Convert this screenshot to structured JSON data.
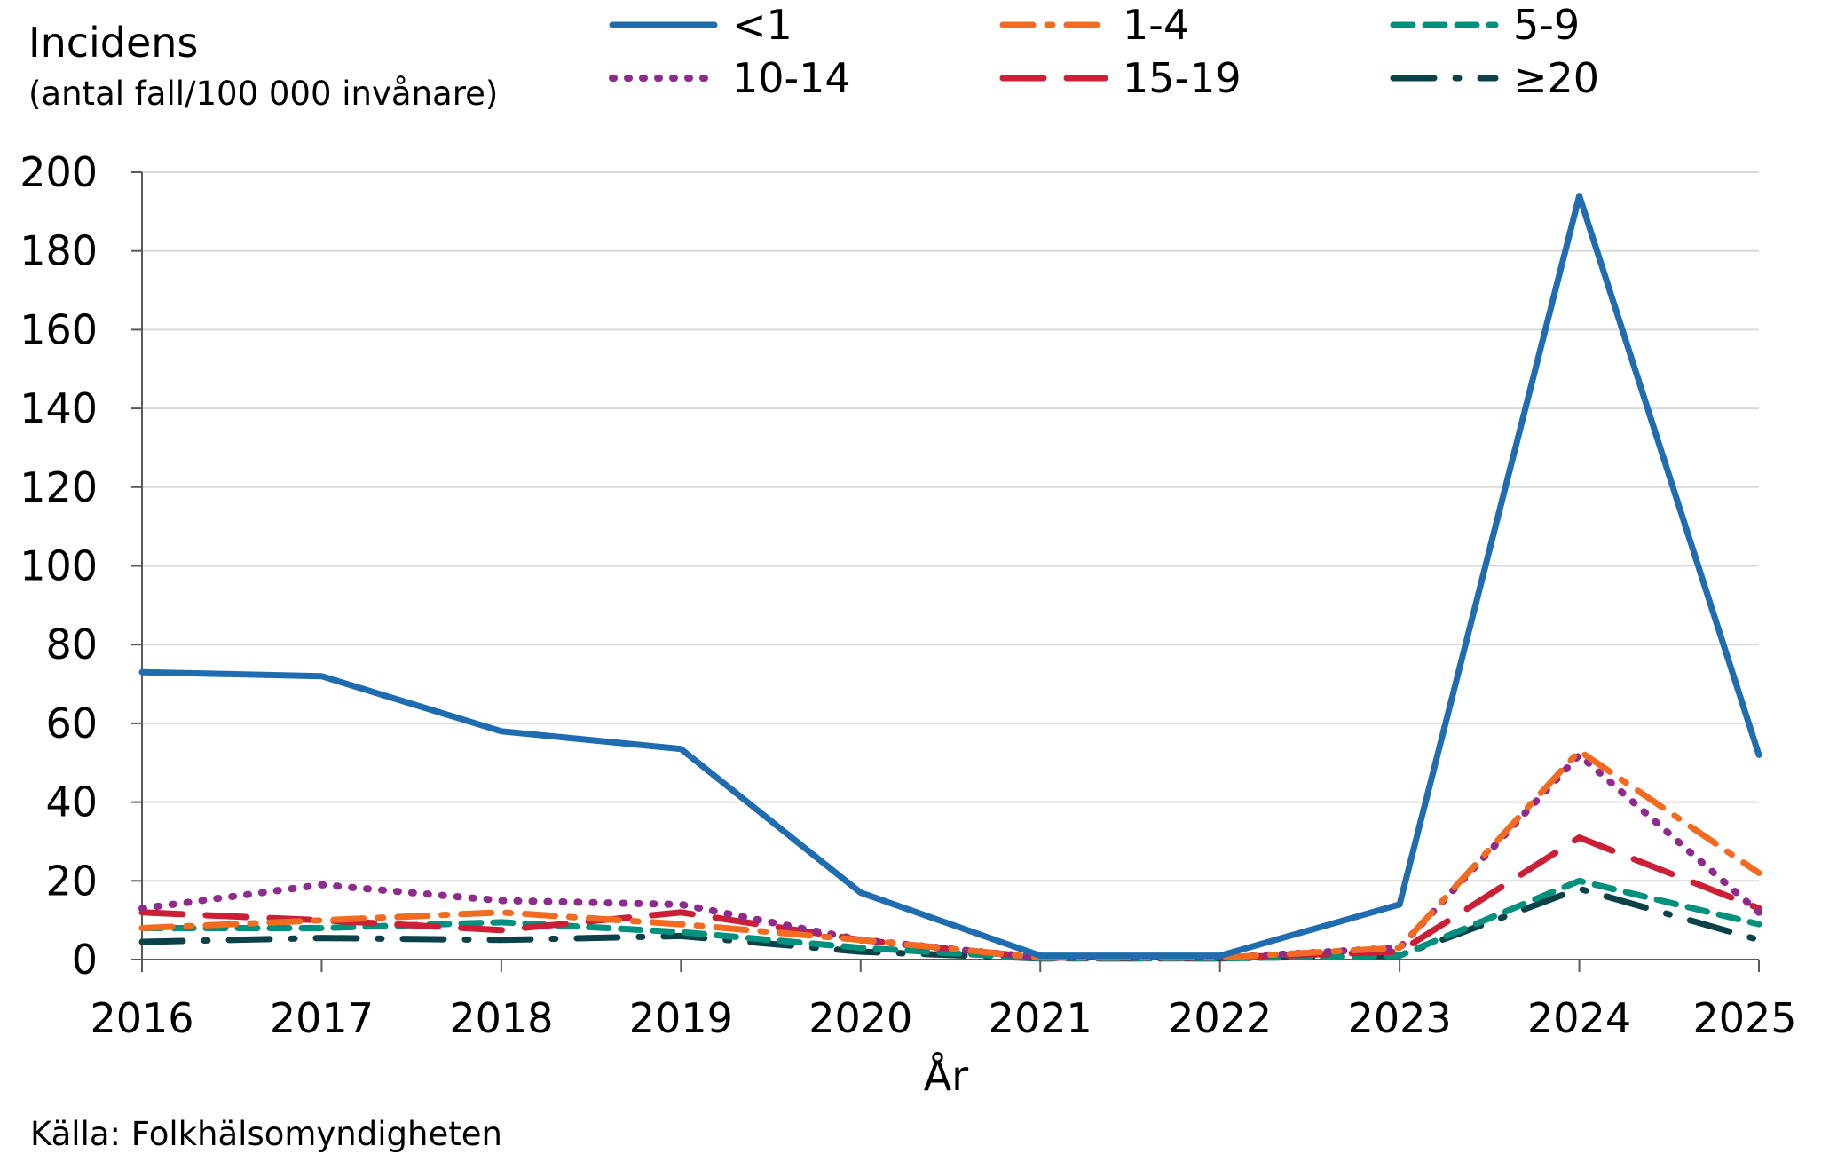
{
  "chart_data": {
    "type": "line",
    "ylabel": "Incidens",
    "ylabel_sub": "(antal fall/100 000 invånare)",
    "xlabel": "År",
    "source": "Källa: Folkhälsomyndigheten",
    "x": [
      "2016",
      "2017",
      "2018",
      "2019",
      "2020",
      "2021",
      "2022",
      "2023",
      "2024",
      "2025"
    ],
    "ylim": [
      0,
      200
    ],
    "yticks": [
      "0",
      "20",
      "40",
      "60",
      "80",
      "100",
      "120",
      "140",
      "160",
      "180",
      "200"
    ],
    "grid": "horizontal",
    "legend_position": "top",
    "series": [
      {
        "name": "<1",
        "color": "#1f6cb0",
        "style": "solid",
        "values": [
          73,
          72,
          58,
          53.5,
          17,
          1,
          1,
          14,
          194,
          52
        ]
      },
      {
        "name": "1-4",
        "color": "#f26b21",
        "style": "dash-dot",
        "values": [
          8,
          10,
          12,
          9,
          5,
          0.5,
          0.5,
          3,
          53,
          22
        ]
      },
      {
        "name": "5-9",
        "color": "#00917e",
        "style": "dashed",
        "values": [
          8,
          8,
          9.5,
          7,
          3,
          0.3,
          0.3,
          1,
          20,
          9
        ]
      },
      {
        "name": "10-14",
        "color": "#8e2c8e",
        "style": "dotted",
        "values": [
          13,
          19,
          15,
          14,
          5,
          0.5,
          0.5,
          3,
          52,
          12
        ]
      },
      {
        "name": "15-19",
        "color": "#cc1f36",
        "style": "long-dash",
        "values": [
          12,
          10,
          7.5,
          12,
          5,
          0.5,
          0.5,
          2,
          31,
          13
        ]
      },
      {
        "name": "≥20",
        "color": "#0b4148",
        "style": "long-dash-dot",
        "values": [
          4.5,
          5.5,
          5,
          6,
          2,
          0.3,
          0.3,
          1,
          18,
          5
        ]
      }
    ]
  }
}
